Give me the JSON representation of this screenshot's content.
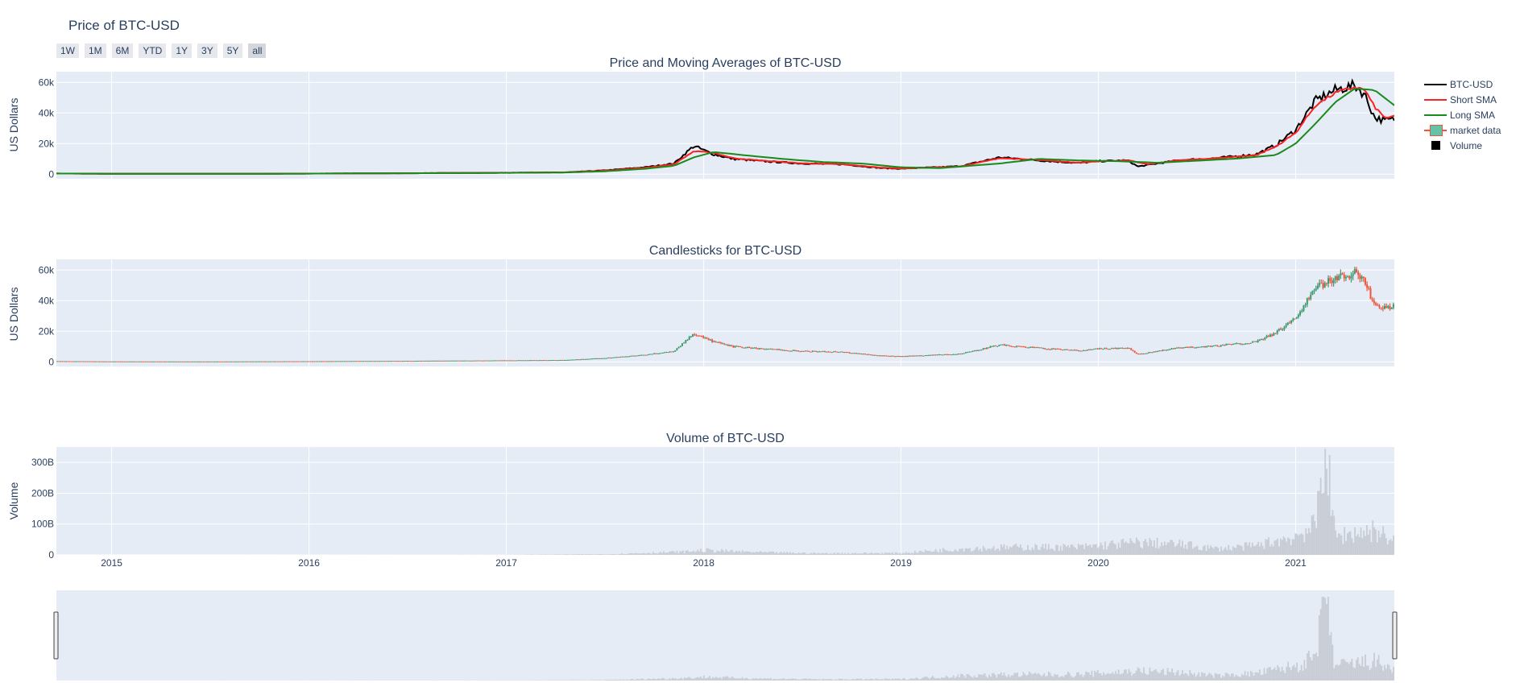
{
  "title": "Price of BTC-USD",
  "range_buttons": [
    "1W",
    "1M",
    "6M",
    "YTD",
    "1Y",
    "3Y",
    "5Y",
    "all"
  ],
  "active_range": "all",
  "legend": [
    {
      "label": "BTC-USD",
      "color": "#000000",
      "symbol": "line"
    },
    {
      "label": "Short SMA",
      "color": "#ff2020",
      "symbol": "line"
    },
    {
      "label": "Long SMA",
      "color": "#1a8a1a",
      "symbol": "line"
    },
    {
      "label": "market data",
      "color": "#ef553b",
      "fill": "#66c2a5",
      "symbol": "candle"
    },
    {
      "label": "Volume",
      "color": "#000000",
      "symbol": "square"
    }
  ],
  "colors": {
    "plot_bg": "#e5ecf6",
    "grid": "#ffffff",
    "price": "#000000",
    "short_sma": "#ff2020",
    "long_sma": "#1a8a1a",
    "candle_up": "#3d9970",
    "candle_down": "#ef553b",
    "volume": "#c8ccd4"
  },
  "chart_data": [
    {
      "type": "line",
      "title": "Price and Moving Averages of BTC-USD",
      "ylabel": "US Dollars",
      "ylim": [
        -3000,
        67000
      ],
      "yticks": [
        0,
        20000,
        40000,
        60000
      ],
      "ytick_labels": [
        "0",
        "20k",
        "40k",
        "60k"
      ],
      "xlim": [
        2014.72,
        2021.5
      ],
      "series": [
        {
          "name": "BTC-USD",
          "x": [
            2014.72,
            2015.0,
            2015.5,
            2016.0,
            2016.5,
            2017.0,
            2017.3,
            2017.5,
            2017.7,
            2017.85,
            2017.95,
            2018.05,
            2018.15,
            2018.3,
            2018.5,
            2018.7,
            2018.9,
            2019.0,
            2019.3,
            2019.5,
            2019.7,
            2019.9,
            2020.0,
            2020.15,
            2020.2,
            2020.4,
            2020.6,
            2020.8,
            2020.9,
            2021.0,
            2021.1,
            2021.2,
            2021.3,
            2021.35,
            2021.4,
            2021.45,
            2021.5
          ],
          "y": [
            450,
            300,
            250,
            400,
            650,
            950,
            1200,
            2500,
            4500,
            7000,
            18500,
            13000,
            10000,
            8500,
            7000,
            6500,
            4000,
            3600,
            5200,
            11000,
            9000,
            7300,
            8500,
            9000,
            5000,
            9000,
            10500,
            13000,
            19000,
            29000,
            48000,
            55000,
            58000,
            52000,
            37000,
            35000,
            36000
          ]
        },
        {
          "name": "Short SMA",
          "x": [
            2014.72,
            2015.0,
            2015.5,
            2016.0,
            2016.5,
            2017.0,
            2017.3,
            2017.5,
            2017.7,
            2017.85,
            2017.95,
            2018.05,
            2018.15,
            2018.3,
            2018.5,
            2018.7,
            2018.9,
            2019.0,
            2019.3,
            2019.5,
            2019.7,
            2019.9,
            2020.0,
            2020.15,
            2020.25,
            2020.4,
            2020.6,
            2020.8,
            2020.9,
            2021.0,
            2021.1,
            2021.2,
            2021.3,
            2021.35,
            2021.4,
            2021.45,
            2021.5
          ],
          "y": [
            450,
            300,
            250,
            400,
            650,
            950,
            1200,
            2300,
            4200,
            6500,
            15000,
            14000,
            10500,
            8800,
            7100,
            6500,
            4300,
            3700,
            5000,
            10500,
            9200,
            7500,
            8500,
            9000,
            6500,
            9000,
            10500,
            12500,
            18000,
            27000,
            45000,
            53000,
            57000,
            55000,
            44000,
            37000,
            37500
          ]
        },
        {
          "name": "Long SMA",
          "x": [
            2014.72,
            2015.0,
            2015.5,
            2016.0,
            2016.5,
            2017.0,
            2017.3,
            2017.5,
            2017.7,
            2017.85,
            2017.95,
            2018.05,
            2018.2,
            2018.4,
            2018.6,
            2018.8,
            2019.0,
            2019.2,
            2019.5,
            2019.7,
            2019.9,
            2020.1,
            2020.3,
            2020.5,
            2020.7,
            2020.9,
            2021.0,
            2021.1,
            2021.2,
            2021.3,
            2021.4,
            2021.45,
            2021.5
          ],
          "y": [
            450,
            320,
            260,
            380,
            620,
            900,
            1150,
            1900,
            3500,
            5500,
            11000,
            14500,
            12500,
            10000,
            8000,
            7000,
            4500,
            4000,
            7000,
            10000,
            9000,
            8500,
            7500,
            8800,
            10200,
            12500,
            20000,
            33000,
            47000,
            56000,
            55000,
            50000,
            45000
          ]
        }
      ]
    },
    {
      "type": "candlestick",
      "title": "Candlesticks for BTC-USD",
      "ylabel": "US Dollars",
      "ylim": [
        -3000,
        67000
      ],
      "yticks": [
        0,
        20000,
        40000,
        60000
      ],
      "ytick_labels": [
        "0",
        "20k",
        "40k",
        "60k"
      ],
      "xlim": [
        2014.72,
        2021.5
      ],
      "series": [
        {
          "name": "market data"
        }
      ]
    },
    {
      "type": "bar",
      "title": "Volume of BTC-USD",
      "ylabel": "Volume",
      "ylim": [
        0,
        350000000000
      ],
      "yticks": [
        0,
        100000000000,
        200000000000,
        300000000000
      ],
      "ytick_labels": [
        "0",
        "100B",
        "200B",
        "300B"
      ],
      "xlim": [
        2014.72,
        2021.5
      ],
      "xticks": [
        2015,
        2016,
        2017,
        2018,
        2019,
        2020,
        2021
      ],
      "xtick_labels": [
        "2015",
        "2016",
        "2017",
        "2018",
        "2019",
        "2020",
        "2021"
      ],
      "series": [
        {
          "name": "Volume",
          "x": [
            2014.72,
            2016.0,
            2017.0,
            2017.5,
            2017.9,
            2018.0,
            2018.3,
            2018.6,
            2019.0,
            2019.3,
            2019.6,
            2019.9,
            2020.2,
            2020.4,
            2020.6,
            2020.8,
            2021.0,
            2021.05,
            2021.1,
            2021.15,
            2021.2,
            2021.3,
            2021.4,
            2021.5
          ],
          "y": [
            20000000,
            60000000,
            300000000,
            2000000000,
            10000000000,
            15000000000,
            8000000000,
            5000000000,
            6000000000,
            20000000000,
            25000000000,
            25000000000,
            40000000000,
            35000000000,
            20000000000,
            30000000000,
            60000000000,
            80000000000,
            90000000000,
            345000000000,
            60000000000,
            70000000000,
            80000000000,
            45000000000
          ]
        }
      ]
    }
  ]
}
